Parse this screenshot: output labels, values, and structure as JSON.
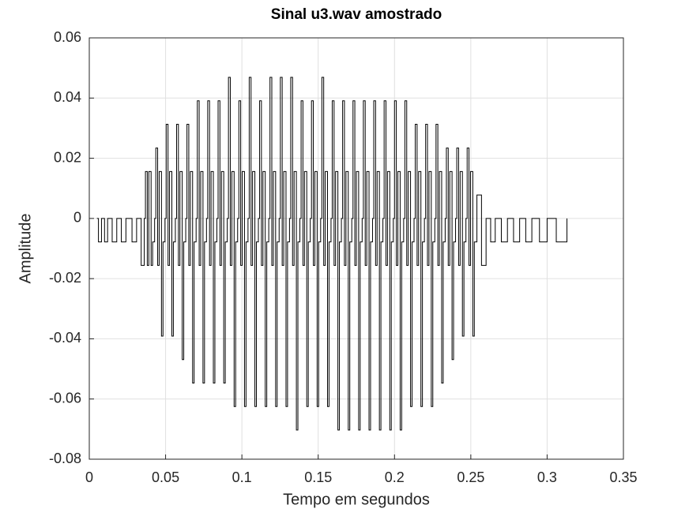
{
  "chart_data": {
    "type": "line",
    "title": "Sinal u3.wav amostrado",
    "x_label": "Tempo em segundos",
    "y_label": "Amplitude",
    "drawstyle": "steps",
    "grid": true,
    "xlim": [
      0,
      0.35
    ],
    "xticks": [
      0,
      0.05,
      0.1,
      0.15,
      0.2,
      0.25,
      0.3,
      0.35
    ],
    "ylim": [
      -0.08,
      0.06
    ],
    "yticks": [
      0.06,
      0.04,
      0.02,
      0,
      -0.02,
      -0.04,
      -0.06,
      -0.08
    ],
    "series": [
      {
        "color": "#000000",
        "x": [
          0.005,
          0.006,
          0.008,
          0.01,
          0.012,
          0.015,
          0.018,
          0.021,
          0.024,
          0.028,
          0.031,
          0.034,
          0.036,
          0.0368,
          0.038,
          0.039,
          0.0405,
          0.0415,
          0.0428,
          0.0436,
          0.0448,
          0.0458,
          0.0473,
          0.0483,
          0.0496,
          0.0504,
          0.0516,
          0.0526,
          0.0541,
          0.0551,
          0.0564,
          0.0572,
          0.0584,
          0.0594,
          0.0609,
          0.0619,
          0.0632,
          0.064,
          0.0652,
          0.0662,
          0.0677,
          0.0687,
          0.07,
          0.0708,
          0.072,
          0.073,
          0.0745,
          0.0755,
          0.0768,
          0.0776,
          0.0788,
          0.0798,
          0.0813,
          0.0823,
          0.0836,
          0.0844,
          0.0856,
          0.0866,
          0.0881,
          0.0891,
          0.0904,
          0.0912,
          0.0924,
          0.0934,
          0.0949,
          0.0959,
          0.0972,
          0.098,
          0.0992,
          0.1002,
          0.1017,
          0.1027,
          0.104,
          0.1048,
          0.106,
          0.107,
          0.1085,
          0.1095,
          0.1108,
          0.1116,
          0.1128,
          0.1138,
          0.1153,
          0.1163,
          0.1176,
          0.1184,
          0.1196,
          0.1206,
          0.1221,
          0.1231,
          0.1244,
          0.1252,
          0.1264,
          0.1274,
          0.1289,
          0.1299,
          0.1312,
          0.132,
          0.1332,
          0.1342,
          0.1357,
          0.1367,
          0.138,
          0.1388,
          0.14,
          0.141,
          0.1425,
          0.1435,
          0.1448,
          0.1456,
          0.1468,
          0.1478,
          0.1493,
          0.1503,
          0.1516,
          0.1524,
          0.1536,
          0.1546,
          0.1561,
          0.1571,
          0.1584,
          0.1592,
          0.1604,
          0.1614,
          0.1629,
          0.1639,
          0.1652,
          0.166,
          0.1672,
          0.1682,
          0.1697,
          0.1707,
          0.172,
          0.1728,
          0.174,
          0.175,
          0.1765,
          0.1775,
          0.1788,
          0.1796,
          0.1808,
          0.1818,
          0.1833,
          0.1843,
          0.1856,
          0.1864,
          0.1876,
          0.1886,
          0.1901,
          0.1911,
          0.1924,
          0.1932,
          0.1944,
          0.1954,
          0.1969,
          0.1979,
          0.1992,
          0.2,
          0.2012,
          0.2022,
          0.2037,
          0.2047,
          0.206,
          0.2068,
          0.208,
          0.209,
          0.2105,
          0.2115,
          0.2128,
          0.2136,
          0.2148,
          0.2158,
          0.2173,
          0.2183,
          0.2196,
          0.2204,
          0.2216,
          0.2226,
          0.2241,
          0.2251,
          0.2264,
          0.2272,
          0.2284,
          0.2294,
          0.2309,
          0.2319,
          0.2332,
          0.234,
          0.2352,
          0.2362,
          0.2377,
          0.2387,
          0.24,
          0.2408,
          0.242,
          0.243,
          0.2445,
          0.2455,
          0.2468,
          0.2476,
          0.2488,
          0.2498,
          0.2513,
          0.2523,
          0.254,
          0.257,
          0.26,
          0.263,
          0.266,
          0.27,
          0.274,
          0.278,
          0.282,
          0.286,
          0.29,
          0.295,
          0.3,
          0.306,
          0.313
        ],
        "values": [
          0,
          -0.0078,
          0,
          -0.0078,
          0,
          -0.0078,
          0,
          -0.0078,
          0,
          -0.0078,
          0,
          -0.0156,
          0,
          0.0156,
          -0.0156,
          0.0156,
          -0.0156,
          -0.0078,
          0,
          0.0234,
          -0.0156,
          0.0156,
          -0.0391,
          -0.0078,
          0,
          0.0313,
          -0.0156,
          0.0156,
          -0.0391,
          -0.0078,
          0,
          0.0313,
          -0.0156,
          0.0156,
          -0.0469,
          -0.0078,
          0,
          0.0313,
          -0.0156,
          0.0156,
          -0.0547,
          -0.0078,
          0,
          0.0391,
          -0.0156,
          0.0156,
          -0.0547,
          -0.0078,
          0,
          0.0391,
          -0.0156,
          0.0156,
          -0.0547,
          -0.0078,
          0,
          0.0391,
          -0.0156,
          0.0156,
          -0.0547,
          -0.0078,
          0,
          0.0469,
          -0.0156,
          0.0156,
          -0.0625,
          -0.0078,
          0,
          0.0391,
          -0.0156,
          0.0156,
          -0.0625,
          -0.0078,
          0,
          0.0469,
          -0.0156,
          0.0156,
          -0.0625,
          -0.0078,
          0,
          0.0391,
          -0.0156,
          0.0156,
          -0.0625,
          -0.0078,
          0,
          0.0469,
          -0.0156,
          0.0156,
          -0.0625,
          -0.0078,
          0,
          0.0469,
          -0.0156,
          0.0156,
          -0.0625,
          -0.0078,
          0,
          0.0469,
          -0.0156,
          0.0156,
          -0.0703,
          -0.0078,
          0,
          0.0391,
          -0.0156,
          0.0156,
          -0.0625,
          -0.0078,
          0,
          0.0391,
          -0.0156,
          0.0156,
          -0.0625,
          -0.0078,
          0,
          0.0469,
          -0.0156,
          0.0156,
          -0.0625,
          -0.0078,
          0,
          0.0391,
          -0.0156,
          0.0156,
          -0.0703,
          -0.0078,
          0,
          0.0391,
          -0.0156,
          0.0156,
          -0.0703,
          -0.0078,
          0,
          0.0391,
          -0.0156,
          0.0156,
          -0.0703,
          -0.0078,
          0,
          0.0391,
          -0.0156,
          0.0156,
          -0.0703,
          -0.0078,
          0,
          0.0391,
          -0.0156,
          0.0156,
          -0.0703,
          -0.0078,
          0,
          0.0391,
          -0.0156,
          0.0156,
          -0.0703,
          -0.0078,
          0,
          0.0391,
          -0.0156,
          0.0156,
          -0.0703,
          -0.0078,
          0,
          0.0391,
          -0.0156,
          0.0156,
          -0.0625,
          -0.0078,
          0,
          0.0313,
          -0.0156,
          0.0156,
          -0.0625,
          -0.0078,
          0,
          0.0313,
          -0.0156,
          0.0156,
          -0.0625,
          -0.0078,
          0,
          0.0313,
          -0.0156,
          0.0156,
          -0.0547,
          -0.0078,
          0,
          0.0234,
          -0.0156,
          0.0156,
          -0.0469,
          -0.0078,
          0,
          0.0234,
          -0.0156,
          0.0156,
          -0.0391,
          -0.0078,
          0,
          0.0234,
          -0.0156,
          0.0156,
          -0.0391,
          -0.0078,
          0.0078,
          -0.0156,
          0,
          -0.0078,
          0,
          -0.0078,
          0,
          -0.0078,
          0,
          -0.0078,
          0,
          -0.0078,
          0,
          -0.0078,
          0
        ]
      }
    ]
  }
}
